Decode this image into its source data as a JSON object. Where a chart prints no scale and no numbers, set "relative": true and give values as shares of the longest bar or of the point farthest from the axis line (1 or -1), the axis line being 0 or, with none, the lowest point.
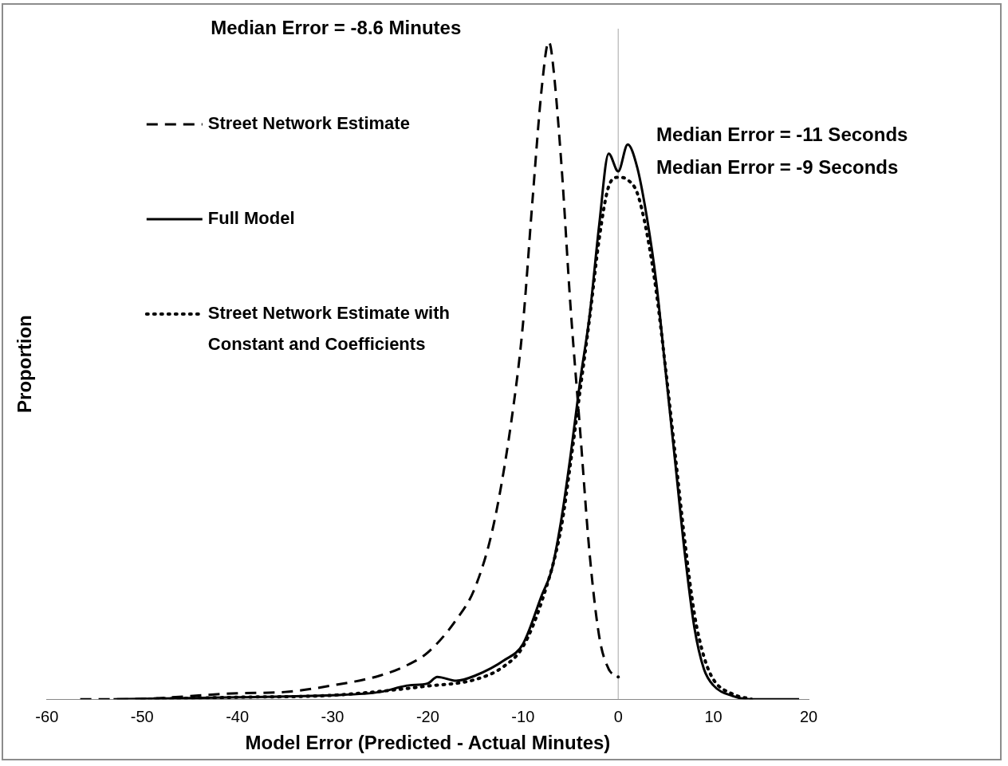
{
  "chart_data": {
    "type": "line",
    "relative": true,
    "xlabel": "Model Error (Predicted - Actual Minutes)",
    "ylabel": "Proportion",
    "xlim": [
      -60,
      20
    ],
    "xticks": [
      -60,
      -50,
      -40,
      -30,
      -20,
      -10,
      0,
      10,
      20
    ],
    "grid": false,
    "legend": "top left",
    "marker": "none",
    "ref_lines": [
      {
        "axis": "x",
        "value": 0,
        "color": "#a6a6a6"
      }
    ],
    "annotations": [
      "Median Error = -8.6 Minutes",
      "Median Error = -11 Seconds",
      "Median Error = -9 Seconds"
    ],
    "series": [
      {
        "name": "Street Network Estimate",
        "color": "#000000",
        "line_style": "dashed",
        "x": [
          -56.5,
          -52,
          -40,
          -35,
          -30,
          -25,
          -22,
          -20,
          -17,
          -15,
          -13,
          -11,
          -10,
          -9,
          -8,
          -7.3,
          -7,
          -6,
          -5,
          -4,
          -3,
          -2,
          -1,
          0
        ],
        "values": [
          0,
          0,
          0.009,
          0.011,
          0.021,
          0.036,
          0.053,
          0.071,
          0.121,
          0.171,
          0.271,
          0.446,
          0.571,
          0.759,
          0.934,
          1,
          0.984,
          0.821,
          0.596,
          0.409,
          0.221,
          0.096,
          0.046,
          0.034
        ]
      },
      {
        "name": "Full Model",
        "color": "#000000",
        "line_style": "solid",
        "x": [
          -53,
          -40,
          -30,
          -25,
          -22,
          -20,
          -19,
          -17,
          -15,
          -12,
          -10,
          -8,
          -7,
          -6,
          -5,
          -4,
          -3,
          -2,
          -1,
          0,
          1,
          2,
          3,
          4,
          5,
          6,
          7,
          8,
          9,
          10,
          12,
          14,
          19
        ],
        "values": [
          0,
          0.003,
          0.006,
          0.011,
          0.021,
          0.024,
          0.034,
          0.028,
          0.036,
          0.059,
          0.084,
          0.159,
          0.196,
          0.271,
          0.371,
          0.484,
          0.584,
          0.721,
          0.83,
          0.803,
          0.844,
          0.809,
          0.734,
          0.634,
          0.496,
          0.359,
          0.221,
          0.109,
          0.046,
          0.021,
          0.005,
          0,
          0
        ]
      },
      {
        "name": "Street Network Estimate with Constant and Coefficients",
        "color": "#000000",
        "line_style": "dotted",
        "x": [
          -50,
          -40,
          -30,
          -20,
          -15,
          -12,
          -10,
          -8,
          -6,
          -5,
          -4,
          -3,
          -2,
          -1,
          0,
          1,
          2,
          3,
          4,
          5,
          6,
          7,
          8,
          9,
          10,
          12,
          14
        ],
        "values": [
          0,
          0.003,
          0.006,
          0.02,
          0.03,
          0.05,
          0.08,
          0.15,
          0.26,
          0.36,
          0.47,
          0.58,
          0.7,
          0.78,
          0.794,
          0.79,
          0.77,
          0.71,
          0.62,
          0.5,
          0.37,
          0.24,
          0.13,
          0.065,
          0.03,
          0.008,
          0
        ]
      }
    ]
  }
}
